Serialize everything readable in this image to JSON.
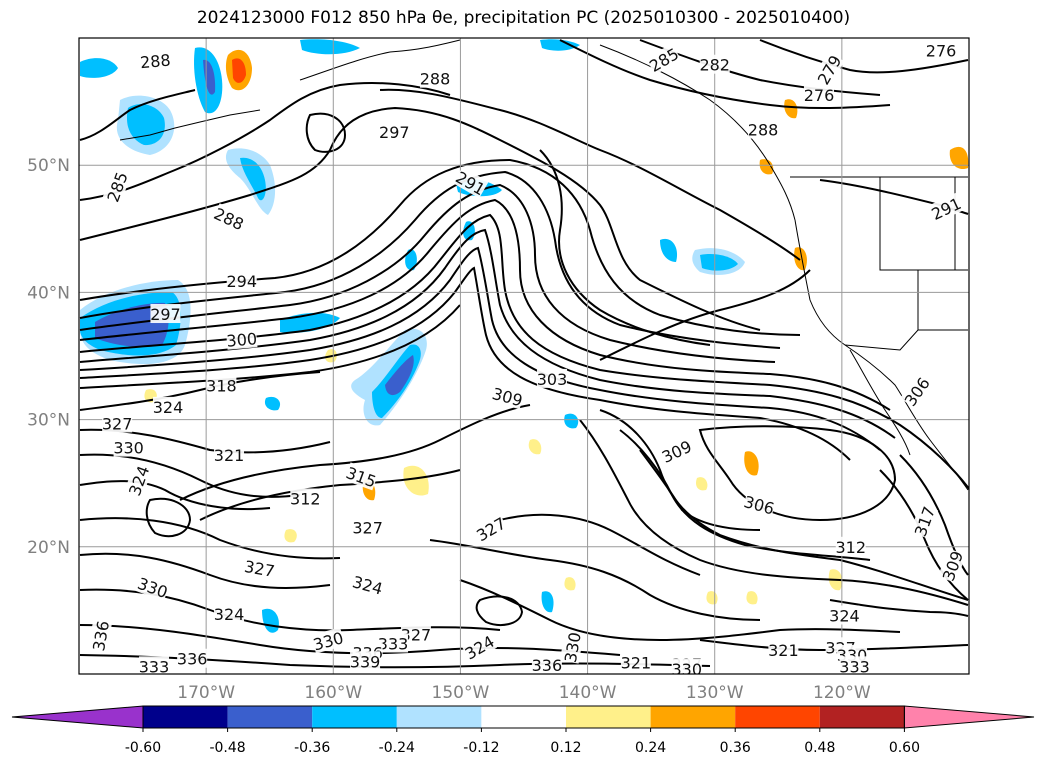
{
  "title": "2024123000 F012 850 hPa θe, precipitation PC (2025010300 - 2025010400)",
  "map": {
    "lon_range": [
      -180,
      -110
    ],
    "lat_range": [
      10,
      60
    ],
    "grid": true,
    "lat_ticks": [
      {
        "value": 50,
        "label": "50°N"
      },
      {
        "value": 40,
        "label": "40°N"
      },
      {
        "value": 30,
        "label": "30°N"
      },
      {
        "value": 20,
        "label": "20°N"
      }
    ],
    "lon_ticks": [
      {
        "value": -170,
        "label": "170°W"
      },
      {
        "value": -160,
        "label": "160°W"
      },
      {
        "value": -150,
        "label": "150°W"
      },
      {
        "value": -140,
        "label": "140°W"
      },
      {
        "value": -130,
        "label": "130°W"
      },
      {
        "value": -120,
        "label": "120°W"
      }
    ],
    "contour_labels": [
      {
        "text": "288",
        "lon": -174,
        "lat": 58.2,
        "rot": -5
      },
      {
        "text": "288",
        "lon": -152,
        "lat": 56.8,
        "rot": 0
      },
      {
        "text": "285",
        "lon": -134,
        "lat": 58.3,
        "rot": -30
      },
      {
        "text": "282",
        "lon": -130,
        "lat": 57.9,
        "rot": 0
      },
      {
        "text": "279",
        "lon": -121,
        "lat": 57.5,
        "rot": -60
      },
      {
        "text": "276",
        "lon": -121.8,
        "lat": 55.5,
        "rot": 0
      },
      {
        "text": "276",
        "lon": -112.2,
        "lat": 59.0,
        "rot": 0
      },
      {
        "text": "297",
        "lon": -155.2,
        "lat": 52.6,
        "rot": 0
      },
      {
        "text": "288",
        "lon": -126.2,
        "lat": 52.8,
        "rot": 0
      },
      {
        "text": "291",
        "lon": -149.2,
        "lat": 48.6,
        "rot": 30
      },
      {
        "text": "291",
        "lon": -111.8,
        "lat": 46.6,
        "rot": -25
      },
      {
        "text": "285",
        "lon": -177,
        "lat": 48.3,
        "rot": -70
      },
      {
        "text": "288",
        "lon": -168.2,
        "lat": 45.8,
        "rot": 25
      },
      {
        "text": "294",
        "lon": -167.2,
        "lat": 40.9,
        "rot": 0
      },
      {
        "text": "297",
        "lon": -173.2,
        "lat": 38.3,
        "rot": 0
      },
      {
        "text": "300",
        "lon": -167.2,
        "lat": 36.3,
        "rot": -5
      },
      {
        "text": "318",
        "lon": -168.8,
        "lat": 32.7,
        "rot": 0
      },
      {
        "text": "303",
        "lon": -142.8,
        "lat": 33.2,
        "rot": 0
      },
      {
        "text": "306",
        "lon": -114.1,
        "lat": 32.2,
        "rot": -55
      },
      {
        "text": "309",
        "lon": -146.3,
        "lat": 31.8,
        "rot": 15
      },
      {
        "text": "324",
        "lon": -173,
        "lat": 31.0,
        "rot": 0
      },
      {
        "text": "327",
        "lon": -177,
        "lat": 29.7,
        "rot": 0
      },
      {
        "text": "330",
        "lon": -176.1,
        "lat": 27.8,
        "rot": 0
      },
      {
        "text": "321",
        "lon": -168.2,
        "lat": 27.2,
        "rot": 0
      },
      {
        "text": "324",
        "lon": -175.3,
        "lat": 25.2,
        "rot": -70
      },
      {
        "text": "309",
        "lon": -133,
        "lat": 27.5,
        "rot": -25
      },
      {
        "text": "315",
        "lon": -157.8,
        "lat": 25.5,
        "rot": 20
      },
      {
        "text": "312",
        "lon": -162.2,
        "lat": 23.8,
        "rot": 0
      },
      {
        "text": "306",
        "lon": -126.5,
        "lat": 23.3,
        "rot": 15
      },
      {
        "text": "327",
        "lon": -157.3,
        "lat": 21.5,
        "rot": 0
      },
      {
        "text": "327",
        "lon": -147.6,
        "lat": 21.4,
        "rot": -30
      },
      {
        "text": "317",
        "lon": -113.5,
        "lat": 22.0,
        "rot": -70
      },
      {
        "text": "309",
        "lon": -111.3,
        "lat": 18.5,
        "rot": -70
      },
      {
        "text": "312",
        "lon": -119.3,
        "lat": 20.0,
        "rot": 0
      },
      {
        "text": "327",
        "lon": -165.8,
        "lat": 18.3,
        "rot": 10
      },
      {
        "text": "324",
        "lon": -157.3,
        "lat": 17.0,
        "rot": 15
      },
      {
        "text": "330",
        "lon": -174.2,
        "lat": 16.8,
        "rot": 20
      },
      {
        "text": "324",
        "lon": -168.2,
        "lat": 14.7,
        "rot": 0
      },
      {
        "text": "324",
        "lon": -119.8,
        "lat": 14.6,
        "rot": 0
      },
      {
        "text": "327",
        "lon": -153.5,
        "lat": 13.1,
        "rot": 0
      },
      {
        "text": "330",
        "lon": -160.4,
        "lat": 12.6,
        "rot": -15
      },
      {
        "text": "333",
        "lon": -155.3,
        "lat": 12.4,
        "rot": 0
      },
      {
        "text": "336",
        "lon": -157.3,
        "lat": 11.7,
        "rot": 0
      },
      {
        "text": "324",
        "lon": -148.5,
        "lat": 12.1,
        "rot": -30
      },
      {
        "text": "330",
        "lon": -141.2,
        "lat": 12.1,
        "rot": -80
      },
      {
        "text": "321",
        "lon": -124.6,
        "lat": 11.9,
        "rot": 0
      },
      {
        "text": "327",
        "lon": -120.1,
        "lat": 12.1,
        "rot": 0
      },
      {
        "text": "330",
        "lon": -119.2,
        "lat": 11.5,
        "rot": 0
      },
      {
        "text": "336",
        "lon": -178.3,
        "lat": 13.0,
        "rot": -80
      },
      {
        "text": "336",
        "lon": -171.1,
        "lat": 11.2,
        "rot": 0
      },
      {
        "text": "333",
        "lon": -174.1,
        "lat": 10.6,
        "rot": 0
      },
      {
        "text": "339",
        "lon": -157.5,
        "lat": 11.0,
        "rot": 0
      },
      {
        "text": "336",
        "lon": -143.2,
        "lat": 10.7,
        "rot": 0
      },
      {
        "text": "321",
        "lon": -136.2,
        "lat": 10.9,
        "rot": 0
      },
      {
        "text": "327",
        "lon": -132.2,
        "lat": 10.8,
        "rot": 0
      },
      {
        "text": "330",
        "lon": -132.2,
        "lat": 10.4,
        "rot": 0
      },
      {
        "text": "333",
        "lon": -119,
        "lat": 10.6,
        "rot": 0
      }
    ]
  },
  "colorbar": {
    "label_values": [
      "-0.60",
      "-0.48",
      "-0.36",
      "-0.24",
      "-0.12",
      "0.12",
      "0.24",
      "0.36",
      "0.48",
      "0.60"
    ],
    "colors": {
      "under": "#9932cc",
      "segments": [
        "#00008b",
        "#3a5fcd",
        "#00bfff",
        "#b0e2ff",
        "#ffffff",
        "#fff08a",
        "#ffa500",
        "#ff4500",
        "#b22222"
      ],
      "over": "#ff82ab"
    }
  },
  "colors": {
    "blue_heavy": "#00bfff",
    "blue_light": "#b0e2ff",
    "blue_dark": "#3a5fcd",
    "blue_deeper": "#00008b",
    "yellow": "#fff08a",
    "orange": "#ffa500",
    "red": "#ff4500"
  }
}
